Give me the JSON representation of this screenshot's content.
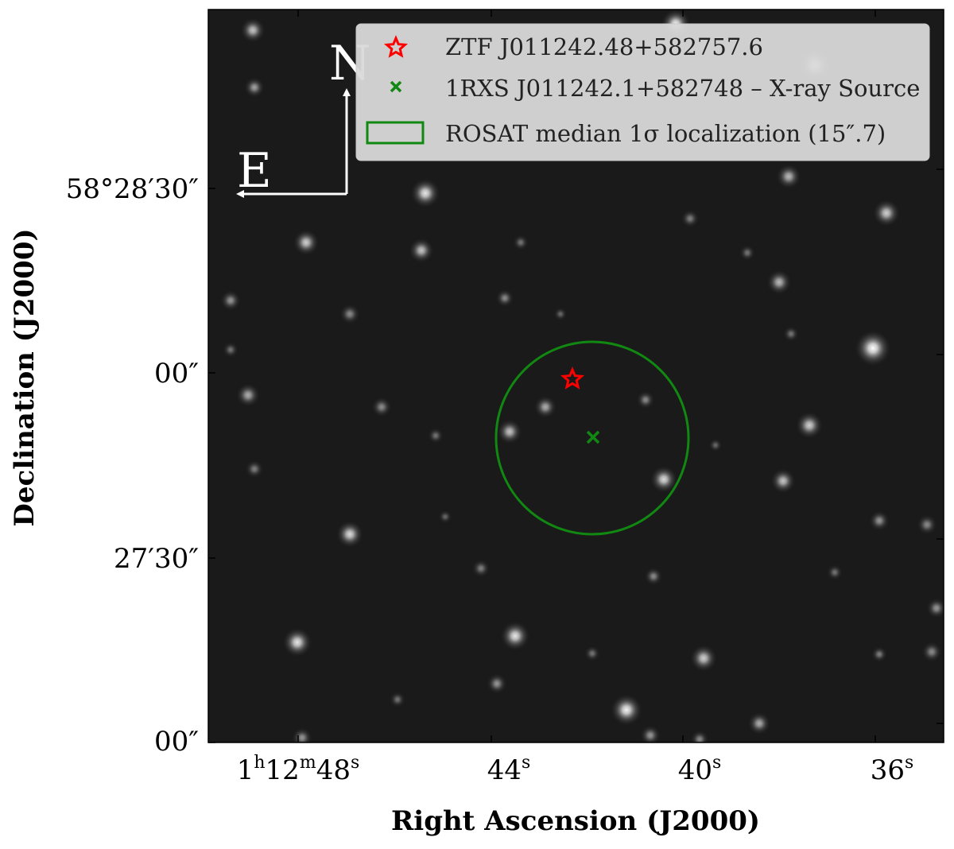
{
  "chart_data": {
    "type": "scatter",
    "image_kind": "grayscale sky image with celestial coordinate grid",
    "background_color": "#1a1a1a",
    "xlabel": "Right Ascension (J2000)",
    "ylabel": "Declination (J2000)",
    "x_ticks": [
      {
        "base": "1",
        "sup1": "h",
        "mid": "12",
        "sup2": "m",
        "end": "48",
        "sup3": "s"
      },
      {
        "base": "44",
        "sup1": "s"
      },
      {
        "base": "40",
        "sup1": "s"
      },
      {
        "base": "36",
        "sup1": "s"
      }
    ],
    "y_ticks": [
      {
        "text": "58°28′30″"
      },
      {
        "text": "00″"
      },
      {
        "text": "27′30″"
      },
      {
        "text": "00″"
      }
    ],
    "compass": {
      "north": "N",
      "east": "E",
      "color": "#ffffff"
    },
    "legend": {
      "placement": "top-right",
      "items": [
        {
          "marker": "star",
          "color": "#ff0000",
          "label": "ZTF J011242.48+582757.6"
        },
        {
          "marker": "x",
          "color": "#118811",
          "label": "1RXS J011242.1+582748 – X-ray Source"
        },
        {
          "marker": "rect",
          "color": "#118811",
          "label": "ROSAT median 1σ localization (15″.7)"
        }
      ]
    },
    "series": [
      {
        "name": "ZTF J011242.48+582757.6",
        "marker": "star",
        "color": "#ff0000",
        "ra_s": 42.48,
        "dec_arcsec_offset": -2.4
      },
      {
        "name": "1RXS J011242.1+582748 – X-ray Source",
        "marker": "x",
        "color": "#118811",
        "ra_s": 42.1,
        "dec_arcsec_offset": -12
      }
    ],
    "localization_circle": {
      "color": "#118811",
      "radius_arcsec": 15.7,
      "center_ra_s": 42.1,
      "center_dec_arcsec_offset": -12
    },
    "stars": [
      [
        318,
        38,
        2.2,
        0.75
      ],
      [
        320,
        110,
        1.8,
        0.6
      ],
      [
        850,
        30,
        2.6,
        0.95
      ],
      [
        1025,
        82,
        3.0,
        1.0
      ],
      [
        535,
        243,
        2.6,
        0.9
      ],
      [
        385,
        305,
        2.3,
        0.8
      ],
      [
        530,
        315,
        2.2,
        0.75
      ],
      [
        290,
        378,
        1.8,
        0.55
      ],
      [
        440,
        395,
        1.8,
        0.5
      ],
      [
        635,
        375,
        1.6,
        0.5
      ],
      [
        655,
        305,
        1.4,
        0.4
      ],
      [
        868,
        275,
        1.6,
        0.45
      ],
      [
        940,
        318,
        1.4,
        0.4
      ],
      [
        992,
        222,
        2.2,
        0.7
      ],
      [
        1115,
        268,
        2.4,
        0.8
      ],
      [
        980,
        355,
        2.2,
        0.7
      ],
      [
        1098,
        438,
        3.2,
        1.0
      ],
      [
        1018,
        535,
        2.4,
        0.8
      ],
      [
        985,
        605,
        2.2,
        0.75
      ],
      [
        312,
        497,
        2.1,
        0.65
      ],
      [
        480,
        512,
        1.8,
        0.5
      ],
      [
        548,
        548,
        1.4,
        0.4
      ],
      [
        641,
        543,
        2.2,
        0.75
      ],
      [
        686,
        512,
        2.0,
        0.65
      ],
      [
        812,
        503,
        1.6,
        0.5
      ],
      [
        835,
        603,
        2.4,
        0.85
      ],
      [
        995,
        420,
        1.4,
        0.4
      ],
      [
        1106,
        655,
        1.8,
        0.55
      ],
      [
        1166,
        660,
        1.8,
        0.5
      ],
      [
        320,
        590,
        1.6,
        0.45
      ],
      [
        440,
        672,
        2.4,
        0.85
      ],
      [
        605,
        715,
        1.6,
        0.45
      ],
      [
        822,
        725,
        1.6,
        0.5
      ],
      [
        1178,
        765,
        1.8,
        0.55
      ],
      [
        1172,
        820,
        1.8,
        0.5
      ],
      [
        374,
        808,
        2.6,
        0.9
      ],
      [
        648,
        800,
        2.6,
        0.9
      ],
      [
        885,
        828,
        2.4,
        0.8
      ],
      [
        745,
        822,
        1.4,
        0.4
      ],
      [
        1106,
        823,
        1.4,
        0.45
      ],
      [
        625,
        860,
        1.8,
        0.55
      ],
      [
        788,
        893,
        2.8,
        0.95
      ],
      [
        818,
        925,
        1.8,
        0.55
      ],
      [
        955,
        910,
        2.0,
        0.65
      ],
      [
        880,
        930,
        1.6,
        0.5
      ],
      [
        380,
        928,
        1.8,
        0.55
      ],
      [
        290,
        440,
        1.4,
        0.4
      ],
      [
        705,
        395,
        1.2,
        0.35
      ],
      [
        560,
        650,
        1.2,
        0.35
      ],
      [
        900,
        560,
        1.2,
        0.35
      ],
      [
        1050,
        720,
        1.4,
        0.4
      ],
      [
        500,
        880,
        1.4,
        0.4
      ]
    ]
  }
}
